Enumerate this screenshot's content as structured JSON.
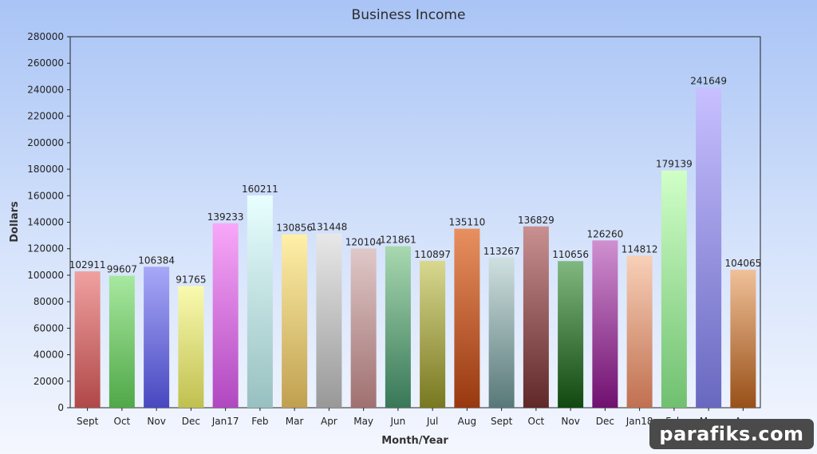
{
  "chart_data": {
    "type": "bar",
    "title": "Business Income",
    "xlabel": "Month/Year",
    "ylabel": "Dollars",
    "ylim": [
      0,
      280000
    ],
    "ytick_step": 20000,
    "grid": false,
    "legend": "none",
    "show_data_labels": true,
    "categories": [
      "Sept",
      "Oct",
      "Nov",
      "Dec",
      "Jan17",
      "Feb",
      "Mar",
      "Apr",
      "May",
      "Jun",
      "Jul",
      "Aug",
      "Sept",
      "Oct",
      "Nov",
      "Dec",
      "Jan18",
      "Feb",
      "Mar",
      "Apr"
    ],
    "values": [
      102911,
      99607,
      106384,
      91765,
      139233,
      160211,
      130856,
      131448,
      120104,
      121861,
      110897,
      135110,
      113267,
      136829,
      110656,
      126260,
      114812,
      179139,
      241649,
      104065
    ],
    "colors": [
      [
        "#f0a0a0",
        "#b04848"
      ],
      [
        "#a8e8a0",
        "#50a848"
      ],
      [
        "#a8a8f8",
        "#4848c0"
      ],
      [
        "#fafab0",
        "#c0c050"
      ],
      [
        "#f8a8f8",
        "#b048c0"
      ],
      [
        "#e8ffff",
        "#98c0c0"
      ],
      [
        "#fff0a8",
        "#c0a050"
      ],
      [
        "#e8e8e8",
        "#989898"
      ],
      [
        "#e0c8c8",
        "#a07070"
      ],
      [
        "#a8d8b0",
        "#387858"
      ],
      [
        "#d8d890",
        "#787820"
      ],
      [
        "#e89060",
        "#983810"
      ],
      [
        "#d0e0e0",
        "#587878"
      ],
      [
        "#c89090",
        "#602828"
      ],
      [
        "#80b880",
        "#104810"
      ],
      [
        "#d090d0",
        "#701070"
      ],
      [
        "#f8d0b8",
        "#c07050"
      ],
      [
        "#d0ffc8",
        "#70c070"
      ],
      [
        "#c8c0ff",
        "#6868c0"
      ],
      [
        "#f0c098",
        "#985018"
      ]
    ]
  },
  "watermark": "parafiks.com"
}
